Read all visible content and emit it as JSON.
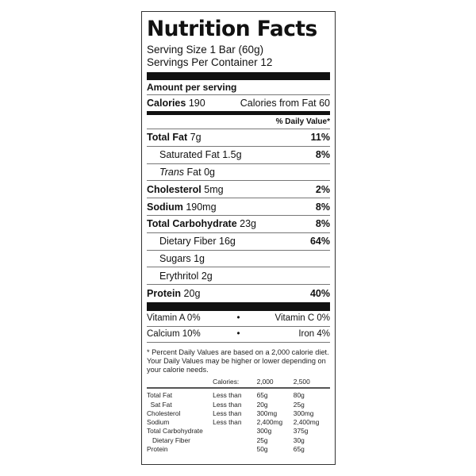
{
  "title": "Nutrition Facts",
  "serving_size": "Serving Size 1 Bar (60g)",
  "servings_per_container": "Servings Per Container 12",
  "amount_per_serving": "Amount per serving",
  "calories": {
    "label": "Calories",
    "value": "190",
    "from_fat": "Calories from Fat 60"
  },
  "dv_header": "% Daily Value*",
  "nutrients": [
    {
      "name": "Total Fat",
      "amount": "7g",
      "dv": "11%",
      "bold": true,
      "indent": false
    },
    {
      "name": "Saturated Fat",
      "amount": "1.5g",
      "dv": "8%",
      "bold": false,
      "indent": true
    },
    {
      "name": "Trans",
      "name_suffix": "Fat",
      "amount": "0g",
      "dv": "",
      "bold": false,
      "indent": true
    },
    {
      "name": "Cholesterol",
      "amount": "5mg",
      "dv": "2%",
      "bold": true,
      "indent": false
    },
    {
      "name": "Sodium",
      "amount": "190mg",
      "dv": "8%",
      "bold": true,
      "indent": false
    },
    {
      "name": "Total Carbohydrate",
      "amount": "23g",
      "dv": "8%",
      "bold": true,
      "indent": false
    },
    {
      "name": "Dietary Fiber",
      "amount": "16g",
      "dv": "64%",
      "bold": false,
      "indent": true
    },
    {
      "name": "Sugars",
      "amount": "1g",
      "dv": "",
      "bold": false,
      "indent": true
    },
    {
      "name": "Erythritol",
      "amount": "2g",
      "dv": "",
      "bold": false,
      "indent": true
    },
    {
      "name": "Protein",
      "amount": "20g",
      "dv": "40%",
      "bold": true,
      "indent": false
    }
  ],
  "vitamins": [
    {
      "left": "Vitamin A 0%",
      "dot": "•",
      "right": "Vitamin C 0%"
    },
    {
      "left": "Calcium 10%",
      "dot": "•",
      "right": "Iron 4%"
    }
  ],
  "footnote": "* Percent Daily Values are based on a 2,000 calorie diet. Your Daily Values may be higher or lower depending on your calorie needs.",
  "daily_table": {
    "header": [
      "",
      "Calories:",
      "2,000",
      "2,500"
    ],
    "rows": [
      [
        "Total Fat",
        "Less than",
        "65g",
        "80g"
      ],
      [
        "  Sat Fat",
        "Less than",
        "20g",
        "25g"
      ],
      [
        "Cholesterol",
        "Less than",
        "300mg",
        "300mg"
      ],
      [
        "Sodium",
        "Less than",
        "2,400mg",
        "2,400mg"
      ],
      [
        "Total Carbohydrate",
        "",
        "300g",
        "375g"
      ],
      [
        "   Dietary Fiber",
        "",
        "25g",
        "30g"
      ],
      [
        "Protein",
        "",
        "50g",
        "65g"
      ]
    ]
  }
}
